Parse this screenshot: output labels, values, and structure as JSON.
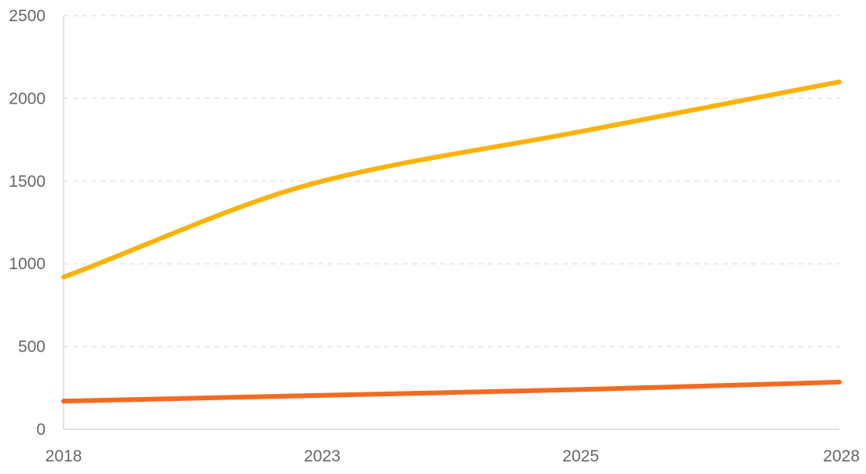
{
  "chart_data": {
    "type": "line",
    "title": "",
    "xlabel": "",
    "ylabel": "",
    "categories": [
      "2018",
      "2023",
      "2025",
      "2028"
    ],
    "ylim": [
      0,
      2500
    ],
    "yticks": [
      0,
      500,
      1000,
      1500,
      2000,
      2500
    ],
    "grid": true,
    "legend": "none",
    "series": [
      {
        "color": "#FBB207",
        "values": [
          920,
          1500,
          1800,
          2100
        ]
      },
      {
        "color": "#F26B22",
        "values": [
          170,
          205,
          240,
          285
        ]
      }
    ]
  }
}
